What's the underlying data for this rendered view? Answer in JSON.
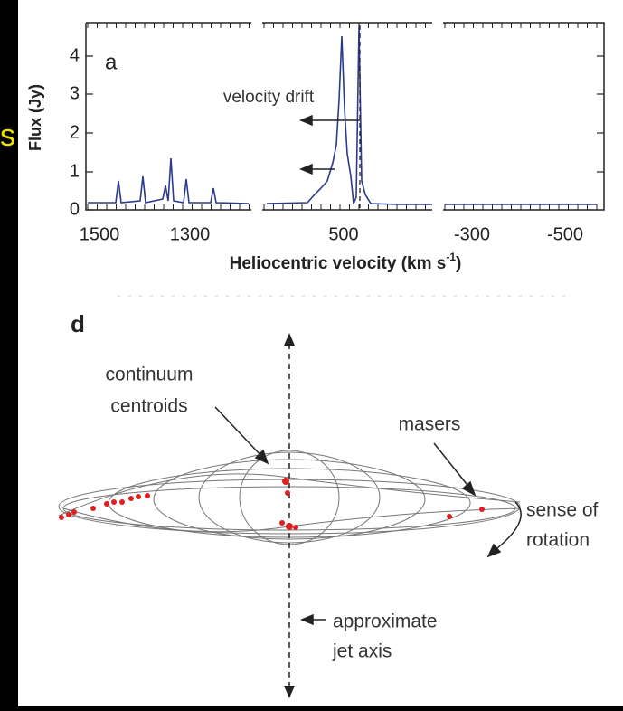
{
  "slide_fragment": "s",
  "panel_a": {
    "label": "a",
    "y_axis_label": "Flux (Jy)",
    "y_tick_labels": [
      "0",
      "1",
      "2",
      "3",
      "4"
    ],
    "x_tick_labels": [
      "1500",
      "1300",
      "500",
      "-300",
      "-500"
    ],
    "x_axis_label": {
      "text": "Heliocentric velocity (km s",
      "superscript": "-1",
      "close": ")"
    },
    "annotation": "velocity drift"
  },
  "panel_d": {
    "label": "d",
    "continuum_label": [
      "continuum",
      "centroids"
    ],
    "masers_label": "masers",
    "rotation_label": [
      "sense of",
      "rotation"
    ],
    "jet_label": [
      "approximate",
      "jet axis"
    ]
  }
}
